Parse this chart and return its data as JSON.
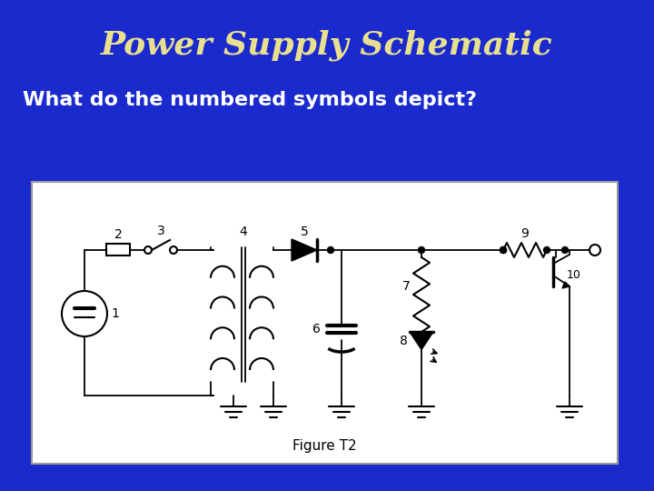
{
  "title": "Power Supply Schematic",
  "subtitle": "What do the numbered symbols depict?",
  "title_color": "#E8E090",
  "subtitle_color": "#FFFFFF",
  "bg_color": "#1a2acc",
  "schematic_bg": "#FFFFFF",
  "figure_label": "Figure T2"
}
